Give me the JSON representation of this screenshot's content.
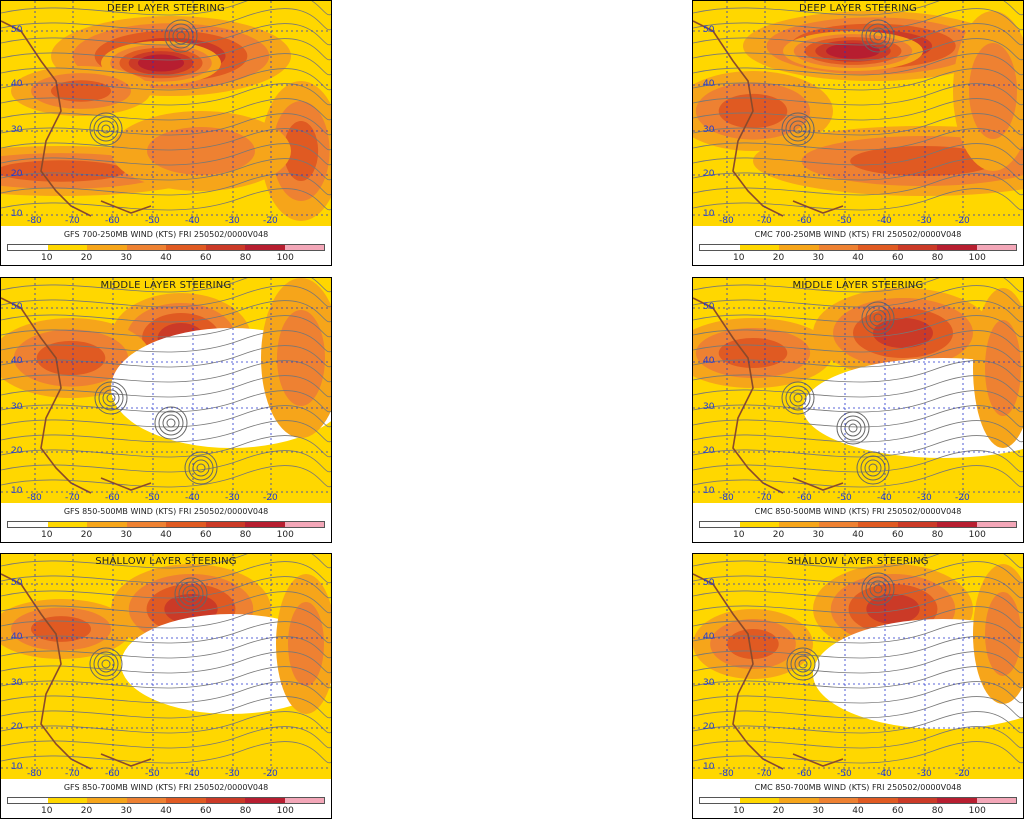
{
  "palette": [
    "#ffffff",
    "#ffd700",
    "#f6a51a",
    "#ee8132",
    "#e05a22",
    "#cb3a27",
    "#b71e30",
    "#f3a7b8"
  ],
  "legend": [
    "10",
    "20",
    "30",
    "40",
    "60",
    "80",
    "100"
  ],
  "lat_labels": [
    "50",
    "40",
    "30",
    "20",
    "10"
  ],
  "lon_labels": [
    "-80",
    "-70",
    "-60",
    "-50",
    "-40",
    "-30",
    "-20"
  ],
  "panels": [
    {
      "id": "gfs-deep",
      "title": "DEEP LAYER STEERING",
      "caption": "GFS 700-250MB WIND (KTS) FRI 250502/0000V048"
    },
    {
      "id": "cmc-deep",
      "title": "DEEP LAYER STEERING",
      "caption": "CMC 700-250MB WIND (KTS) FRI 250502/0000V048"
    },
    {
      "id": "gfs-middle",
      "title": "MIDDLE LAYER STEERING",
      "caption": "GFS 850-500MB WIND (KTS) FRI 250502/0000V048"
    },
    {
      "id": "cmc-middle",
      "title": "MIDDLE LAYER STEERING",
      "caption": "CMC 850-500MB WIND (KTS) FRI 250502/0000V048"
    },
    {
      "id": "gfs-shallow",
      "title": "SHALLOW LAYER STEERING",
      "caption": "GFS 850-700MB WIND (KTS) FRI 250502/0000V048"
    },
    {
      "id": "cmc-shallow",
      "title": "SHALLOW LAYER STEERING",
      "caption": "CMC 850-700MB WIND (KTS) FRI 250502/0000V048"
    }
  ]
}
